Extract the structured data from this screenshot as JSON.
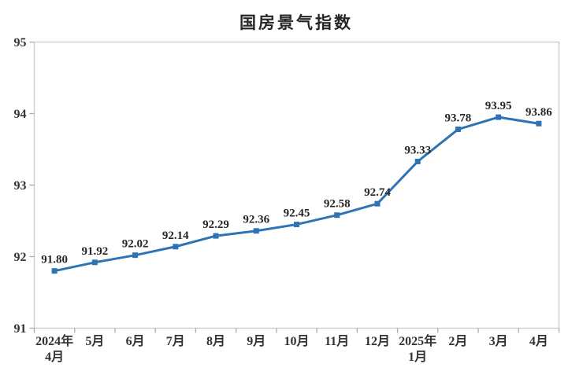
{
  "chart_data": {
    "type": "line",
    "title": "国房景气指数",
    "categories": [
      "2024年|4月",
      "5月",
      "6月",
      "7月",
      "8月",
      "9月",
      "10月",
      "11月",
      "12月",
      "2025年|1月",
      "2月",
      "3月",
      "4月"
    ],
    "values": [
      91.8,
      91.92,
      92.02,
      92.14,
      92.29,
      92.36,
      92.45,
      92.58,
      92.74,
      93.33,
      93.78,
      93.95,
      93.86
    ],
    "data_labels": [
      "91.80",
      "91.92",
      "92.02",
      "92.14",
      "92.29",
      "92.36",
      "92.45",
      "92.58",
      "92.74",
      "93.33",
      "93.78",
      "93.95",
      "93.86"
    ],
    "ylim": [
      91,
      95
    ],
    "y_ticks": [
      "95",
      "94",
      "93",
      "92",
      "91"
    ],
    "grid": false,
    "legend": "none",
    "xlabel": "",
    "ylabel": "",
    "colors": {
      "line": "#2E74B5",
      "marker": "#2E74B5",
      "plot_border": "#C9C9C9",
      "tick": "#ACACAC",
      "axis_text": "#333333",
      "label_text": "#262626",
      "title_text": "#262626",
      "background": "#FFFFFF"
    }
  }
}
